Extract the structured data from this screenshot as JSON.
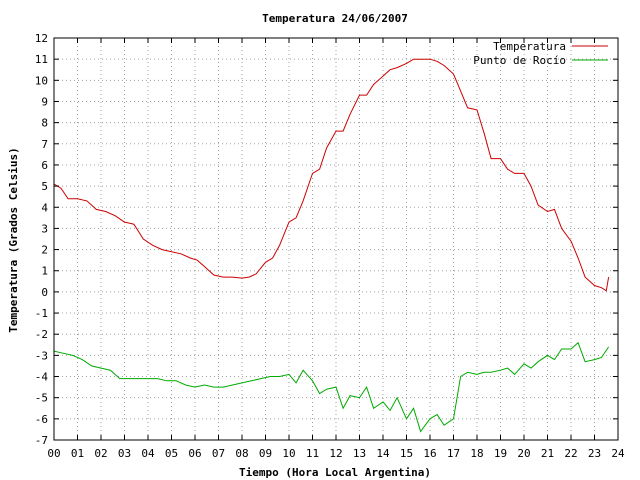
{
  "chart_data": {
    "type": "line",
    "title": "Temperatura 24/06/2007",
    "xlabel": "Tiempo (Hora Local Argentina)",
    "ylabel": "Temperatura (Grados Celsius)",
    "xlim": [
      0,
      24
    ],
    "ylim": [
      -7,
      12
    ],
    "grid": true,
    "legend_position": "top-right",
    "x_ticks": [
      "00",
      "01",
      "02",
      "03",
      "04",
      "05",
      "06",
      "07",
      "08",
      "09",
      "10",
      "11",
      "12",
      "13",
      "14",
      "15",
      "16",
      "17",
      "18",
      "19",
      "20",
      "21",
      "22",
      "23",
      "24"
    ],
    "y_ticks": [
      "-7",
      "-6",
      "-5",
      "-4",
      "-3",
      "-2",
      "-1",
      "0",
      "1",
      "2",
      "3",
      "4",
      "5",
      "6",
      "7",
      "8",
      "9",
      "10",
      "11",
      "12"
    ],
    "series": [
      {
        "name": "Temperatura",
        "color": "#cc0000",
        "x": [
          0,
          0.3,
          0.6,
          1,
          1.4,
          1.8,
          2.2,
          2.6,
          3,
          3.4,
          3.8,
          4.2,
          4.6,
          5,
          5.4,
          5.8,
          6.1,
          6.4,
          6.8,
          7.2,
          7.6,
          8,
          8.3,
          8.6,
          9,
          9.3,
          9.6,
          10,
          10.3,
          10.6,
          11,
          11.3,
          11.6,
          12,
          12.3,
          12.6,
          13,
          13.3,
          13.6,
          14,
          14.3,
          14.6,
          15,
          15.3,
          15.6,
          16,
          16.3,
          16.6,
          17,
          17.3,
          17.6,
          18,
          18.3,
          18.6,
          19,
          19.3,
          19.6,
          20,
          20.3,
          20.6,
          21,
          21.3,
          21.6,
          22,
          22.3,
          22.6,
          23,
          23.3,
          23.5,
          23.6
        ],
        "values": [
          5.1,
          4.9,
          4.4,
          4.4,
          4.3,
          3.9,
          3.8,
          3.6,
          3.3,
          3.2,
          2.5,
          2.2,
          2.0,
          1.9,
          1.8,
          1.6,
          1.5,
          1.2,
          0.8,
          0.7,
          0.7,
          0.65,
          0.7,
          0.85,
          1.4,
          1.6,
          2.2,
          3.3,
          3.5,
          4.3,
          5.6,
          5.8,
          6.8,
          7.6,
          7.6,
          8.4,
          9.3,
          9.3,
          9.8,
          10.2,
          10.5,
          10.6,
          10.8,
          11.0,
          11.0,
          11.0,
          10.9,
          10.7,
          10.3,
          9.5,
          8.7,
          8.6,
          7.5,
          6.3,
          6.3,
          5.8,
          5.6,
          5.6,
          5.0,
          4.1,
          3.8,
          3.9,
          3.0,
          2.4,
          1.6,
          0.7,
          0.3,
          0.2,
          0.05,
          0.7
        ]
      },
      {
        "name": "Punto de Rocío",
        "color": "#00aa00",
        "x": [
          0,
          0.4,
          0.8,
          1.2,
          1.6,
          2.0,
          2.4,
          2.8,
          3.2,
          3.6,
          4.0,
          4.4,
          4.8,
          5.2,
          5.6,
          6.0,
          6.4,
          6.8,
          7.2,
          7.6,
          8.0,
          8.4,
          8.8,
          9.2,
          9.6,
          10.0,
          10.3,
          10.6,
          11.0,
          11.3,
          11.6,
          12.0,
          12.3,
          12.6,
          13.0,
          13.3,
          13.6,
          14.0,
          14.3,
          14.6,
          15.0,
          15.3,
          15.6,
          16.0,
          16.3,
          16.6,
          17.0,
          17.3,
          17.6,
          18.0,
          18.3,
          18.6,
          19.0,
          19.3,
          19.6,
          20.0,
          20.3,
          20.6,
          21.0,
          21.3,
          21.6,
          22.0,
          22.3,
          22.6,
          23.0,
          23.3,
          23.6
        ],
        "values": [
          -2.8,
          -2.9,
          -3.0,
          -3.2,
          -3.5,
          -3.6,
          -3.7,
          -4.1,
          -4.1,
          -4.1,
          -4.1,
          -4.1,
          -4.2,
          -4.2,
          -4.4,
          -4.5,
          -4.4,
          -4.5,
          -4.5,
          -4.4,
          -4.3,
          -4.2,
          -4.1,
          -4.0,
          -4.0,
          -3.9,
          -4.3,
          -3.7,
          -4.2,
          -4.8,
          -4.6,
          -4.5,
          -5.5,
          -4.9,
          -5.0,
          -4.5,
          -5.5,
          -5.2,
          -5.6,
          -5.0,
          -6.0,
          -5.5,
          -6.6,
          -6.0,
          -5.8,
          -6.3,
          -6.0,
          -4.0,
          -3.8,
          -3.9,
          -3.8,
          -3.8,
          -3.7,
          -3.6,
          -3.9,
          -3.4,
          -3.6,
          -3.3,
          -3.0,
          -3.2,
          -2.7,
          -2.7,
          -2.4,
          -3.3,
          -3.2,
          -3.1,
          -2.6
        ]
      }
    ]
  }
}
